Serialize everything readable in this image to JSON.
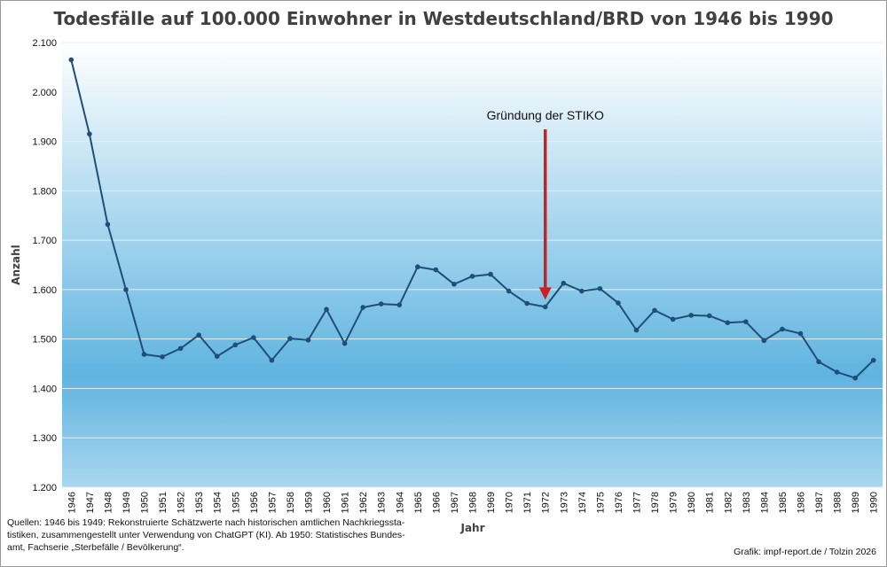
{
  "chart_data": {
    "type": "line",
    "title": "Todesfälle auf 100.000 Einwohner in Westdeutschland/BRD von 1946 bis 1990",
    "xlabel": "Jahr",
    "ylabel": "Anzahl",
    "ylim": [
      1200,
      2100
    ],
    "yticks": [
      "1.200",
      "1.300",
      "1.400",
      "1.500",
      "1.600",
      "1.700",
      "1.800",
      "1.900",
      "2.000",
      "2.100"
    ],
    "ytick_values": [
      1200,
      1300,
      1400,
      1500,
      1600,
      1700,
      1800,
      1900,
      2000,
      2100
    ],
    "categories": [
      "1946",
      "1947",
      "1948",
      "1949",
      "1950",
      "1951",
      "1952",
      "1953",
      "1954",
      "1955",
      "1956",
      "1957",
      "1958",
      "1959",
      "1960",
      "1961",
      "1962",
      "1963",
      "1964",
      "1965",
      "1966",
      "1967",
      "1968",
      "1969",
      "1970",
      "1971",
      "1972",
      "1973",
      "1974",
      "1975",
      "1976",
      "1977",
      "1978",
      "1979",
      "1980",
      "1981",
      "1982",
      "1983",
      "1984",
      "1985",
      "1986",
      "1987",
      "1988",
      "1989",
      "1990"
    ],
    "series": [
      {
        "name": "Todesfälle auf 100.000 Einwohner",
        "color": "#1f4e79",
        "values": [
          2065,
          1915,
          1732,
          1600,
          1469,
          1464,
          1481,
          1508,
          1465,
          1488,
          1503,
          1457,
          1501,
          1498,
          1560,
          1491,
          1564,
          1571,
          1569,
          1646,
          1640,
          1611,
          1627,
          1631,
          1597,
          1572,
          1565,
          1613,
          1597,
          1602,
          1573,
          1518,
          1558,
          1540,
          1548,
          1547,
          1533,
          1535,
          1497,
          1520,
          1511,
          1454,
          1433,
          1421,
          1457
        ]
      }
    ],
    "annotation": {
      "text": "Gründung der STIKO",
      "year": "1972",
      "arrow_color": "#cc1f1f"
    },
    "grid": true,
    "legend": "none"
  },
  "footer": {
    "source_lines": [
      "Quellen: 1946 bis 1949: Rekonstruierte Schätzwerte nach historischen amtlichen Nachkriegssta-",
      "tistiken, zusammengestellt unter Verwendung von ChatGPT (KI). Ab 1950: Statistisches Bundes-",
      "amt, Fachserie „Sterbefälle / Bevölkerung“."
    ],
    "credit": "Grafik: impf-report.de / Tolzin 2026"
  }
}
